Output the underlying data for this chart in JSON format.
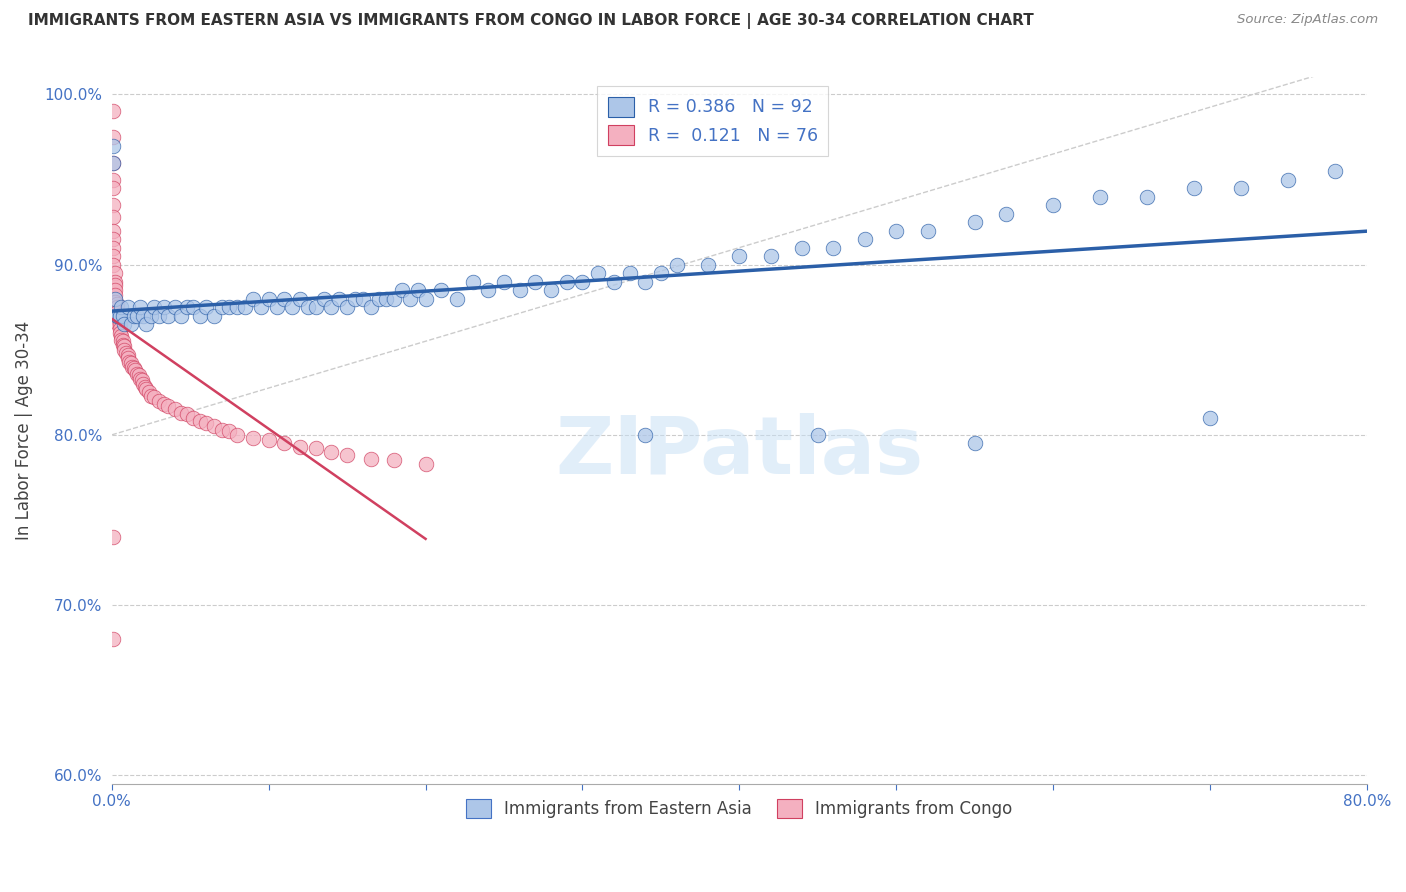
{
  "title": "IMMIGRANTS FROM EASTERN ASIA VS IMMIGRANTS FROM CONGO IN LABOR FORCE | AGE 30-34 CORRELATION CHART",
  "source": "Source: ZipAtlas.com",
  "ylabel": "In Labor Force | Age 30-34",
  "r_eastern_asia": 0.386,
  "n_eastern_asia": 92,
  "r_congo": 0.121,
  "n_congo": 76,
  "eastern_asia_color": "#adc6e8",
  "congo_color": "#f4b0c0",
  "trendline_blue": "#2b5fa8",
  "trendline_pink": "#d04060",
  "title_color": "#333333",
  "axis_label_color": "#444444",
  "tick_color": "#4472c4",
  "legend_text_color": "#4472c4",
  "watermark": "ZIPatlas",
  "eastern_asia_x": [
    0.001,
    0.001,
    0.002,
    0.003,
    0.004,
    0.005,
    0.006,
    0.007,
    0.008,
    0.01,
    0.012,
    0.014,
    0.016,
    0.018,
    0.02,
    0.022,
    0.025,
    0.027,
    0.03,
    0.033,
    0.036,
    0.04,
    0.044,
    0.048,
    0.052,
    0.056,
    0.06,
    0.065,
    0.07,
    0.075,
    0.08,
    0.085,
    0.09,
    0.095,
    0.1,
    0.105,
    0.11,
    0.115,
    0.12,
    0.125,
    0.13,
    0.135,
    0.14,
    0.145,
    0.15,
    0.155,
    0.16,
    0.165,
    0.17,
    0.175,
    0.18,
    0.185,
    0.19,
    0.195,
    0.2,
    0.21,
    0.22,
    0.23,
    0.24,
    0.25,
    0.26,
    0.27,
    0.28,
    0.29,
    0.3,
    0.31,
    0.32,
    0.33,
    0.34,
    0.35,
    0.36,
    0.38,
    0.4,
    0.42,
    0.44,
    0.46,
    0.48,
    0.5,
    0.52,
    0.55,
    0.57,
    0.6,
    0.63,
    0.66,
    0.69,
    0.72,
    0.75,
    0.78,
    0.34,
    0.45,
    0.55,
    0.7
  ],
  "eastern_asia_y": [
    0.97,
    0.96,
    0.88,
    0.87,
    0.87,
    0.87,
    0.875,
    0.87,
    0.865,
    0.875,
    0.865,
    0.87,
    0.87,
    0.875,
    0.87,
    0.865,
    0.87,
    0.875,
    0.87,
    0.875,
    0.87,
    0.875,
    0.87,
    0.875,
    0.875,
    0.87,
    0.875,
    0.87,
    0.875,
    0.875,
    0.875,
    0.875,
    0.88,
    0.875,
    0.88,
    0.875,
    0.88,
    0.875,
    0.88,
    0.875,
    0.875,
    0.88,
    0.875,
    0.88,
    0.875,
    0.88,
    0.88,
    0.875,
    0.88,
    0.88,
    0.88,
    0.885,
    0.88,
    0.885,
    0.88,
    0.885,
    0.88,
    0.89,
    0.885,
    0.89,
    0.885,
    0.89,
    0.885,
    0.89,
    0.89,
    0.895,
    0.89,
    0.895,
    0.89,
    0.895,
    0.9,
    0.9,
    0.905,
    0.905,
    0.91,
    0.91,
    0.915,
    0.92,
    0.92,
    0.925,
    0.93,
    0.935,
    0.94,
    0.94,
    0.945,
    0.945,
    0.95,
    0.955,
    0.8,
    0.8,
    0.795,
    0.81
  ],
  "congo_x": [
    0.001,
    0.001,
    0.001,
    0.001,
    0.001,
    0.001,
    0.001,
    0.001,
    0.001,
    0.001,
    0.001,
    0.001,
    0.002,
    0.002,
    0.002,
    0.002,
    0.002,
    0.002,
    0.003,
    0.003,
    0.003,
    0.004,
    0.004,
    0.004,
    0.005,
    0.005,
    0.005,
    0.006,
    0.006,
    0.007,
    0.007,
    0.008,
    0.008,
    0.009,
    0.01,
    0.01,
    0.011,
    0.012,
    0.013,
    0.014,
    0.015,
    0.016,
    0.017,
    0.018,
    0.019,
    0.02,
    0.021,
    0.022,
    0.024,
    0.025,
    0.027,
    0.03,
    0.033,
    0.036,
    0.04,
    0.044,
    0.048,
    0.052,
    0.056,
    0.06,
    0.065,
    0.07,
    0.075,
    0.08,
    0.09,
    0.1,
    0.11,
    0.12,
    0.13,
    0.14,
    0.15,
    0.165,
    0.18,
    0.2,
    0.001,
    0.001
  ],
  "congo_y": [
    0.99,
    0.975,
    0.96,
    0.95,
    0.945,
    0.935,
    0.928,
    0.92,
    0.915,
    0.91,
    0.905,
    0.9,
    0.895,
    0.89,
    0.888,
    0.885,
    0.882,
    0.878,
    0.877,
    0.875,
    0.872,
    0.87,
    0.868,
    0.865,
    0.865,
    0.862,
    0.86,
    0.858,
    0.856,
    0.855,
    0.853,
    0.852,
    0.85,
    0.848,
    0.847,
    0.845,
    0.843,
    0.842,
    0.84,
    0.839,
    0.838,
    0.836,
    0.835,
    0.833,
    0.832,
    0.83,
    0.828,
    0.827,
    0.825,
    0.823,
    0.822,
    0.82,
    0.818,
    0.817,
    0.815,
    0.813,
    0.812,
    0.81,
    0.808,
    0.807,
    0.805,
    0.803,
    0.802,
    0.8,
    0.798,
    0.797,
    0.795,
    0.793,
    0.792,
    0.79,
    0.788,
    0.786,
    0.785,
    0.783,
    0.74,
    0.68
  ],
  "xlim": [
    0.0,
    0.8
  ],
  "ylim": [
    0.595,
    1.01
  ],
  "xticks": [
    0.0,
    0.1,
    0.2,
    0.3,
    0.4,
    0.5,
    0.6,
    0.7,
    0.8
  ],
  "yticks": [
    0.6,
    0.7,
    0.8,
    0.9,
    1.0
  ],
  "xticklabels_show": [
    "0.0%",
    "",
    "",
    "",
    "",
    "",
    "",
    "",
    "80.0%"
  ],
  "yticklabels": [
    "60.0%",
    "70.0%",
    "80.0%",
    "90.0%",
    "100.0%"
  ],
  "bottom_legend_labels": [
    "Immigrants from Eastern Asia",
    "Immigrants from Congo"
  ],
  "bottom_legend_colors": [
    "#adc6e8",
    "#f4b0c0"
  ],
  "bottom_legend_edge_colors": [
    "#4472c4",
    "#d04060"
  ]
}
